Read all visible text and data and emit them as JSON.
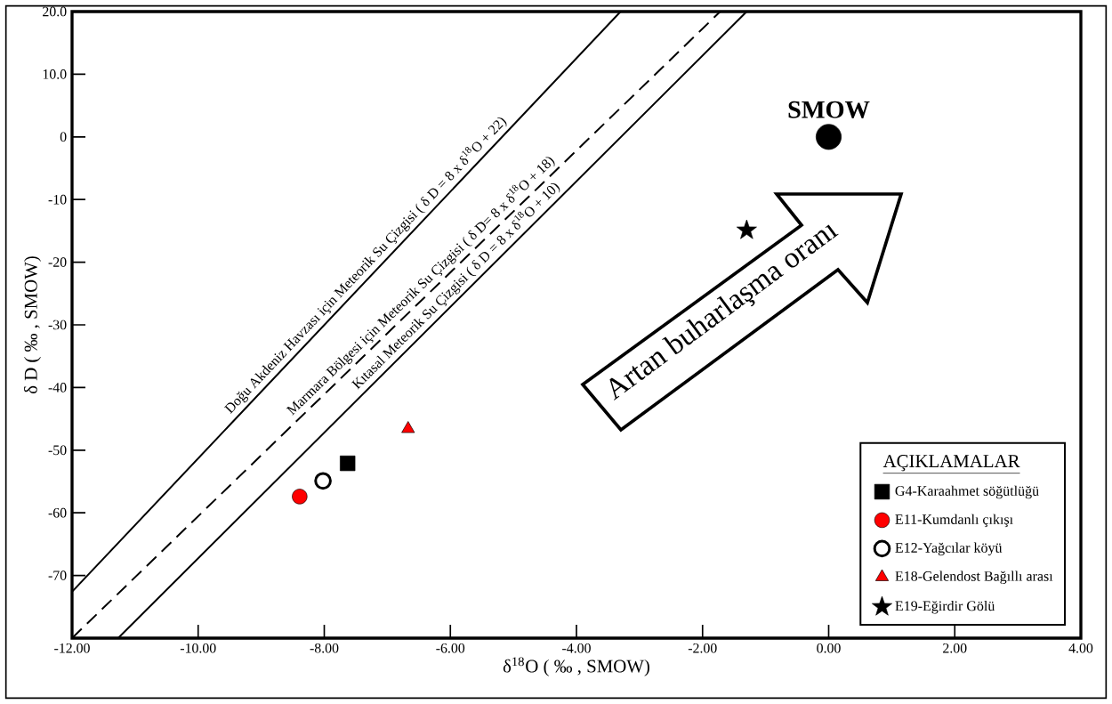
{
  "chart_data": {
    "type": "scatter",
    "xlabel": "δ$^{18}$O ( ‰ , SMOW)",
    "ylabel": "δ D ( ‰ , SMOW)",
    "xlim": [
      -12,
      4
    ],
    "ylim": [
      -80,
      20
    ],
    "xticks": [
      {
        "value": -12,
        "label": "-12.00"
      },
      {
        "value": -10,
        "label": "-10.00"
      },
      {
        "value": -8,
        "label": "-8.00"
      },
      {
        "value": -6,
        "label": "-6.00"
      },
      {
        "value": -4,
        "label": "-4.00"
      },
      {
        "value": -2,
        "label": "-2.00"
      },
      {
        "value": 0,
        "label": "0.00"
      },
      {
        "value": 2,
        "label": "2.00"
      },
      {
        "value": 4,
        "label": "4.00"
      }
    ],
    "yticks": [
      {
        "value": 20,
        "label": "20.0"
      },
      {
        "value": 10,
        "label": "10.0"
      },
      0,
      -10,
      -20,
      -30,
      -40,
      -50,
      -60,
      -70
    ],
    "legend": "bottom right",
    "legend_title": "AÇIKLAMALAR",
    "series": [
      {
        "type": "line",
        "name": "Doğu Akdeniz Havzası için Meteorik Su Çizgisi ( δ D = 8 x δ$^{18}$O + 22)",
        "color": "#000000",
        "line_style": "solid",
        "marker": "none",
        "x": [
          -12,
          -3.3
        ],
        "values": [
          -72.6,
          20
        ]
      },
      {
        "type": "line",
        "name": "Marmara Bölgesi için Meteorik Su Çizgisi ( δ D= 8 x δ$^{18}$O + 18)",
        "color": "#000000",
        "line_style": "dashed",
        "marker": "none",
        "x": [
          -12,
          -1.72
        ],
        "values": [
          -80,
          20
        ]
      },
      {
        "type": "line",
        "name": "Kıtasal Meteorik  Su Çizgisi ( δ D = 8 x δ$^{18}$O + 10)",
        "color": "#000000",
        "line_style": "solid",
        "marker": "none",
        "x": [
          -11.27,
          -1.3
        ],
        "values": [
          -80,
          20
        ]
      },
      {
        "name": "G4-Karaahmet söğütlüğü",
        "color": "#000000",
        "marker": "square",
        "x": [
          -7.63
        ],
        "values": [
          -52.1
        ]
      },
      {
        "name": "E11-Kumdanlı çıkışı",
        "color": "#ff0000",
        "marker": "circle",
        "x": [
          -8.39
        ],
        "values": [
          -57.4
        ]
      },
      {
        "name": "E12-Yağcılar köyü",
        "color": "#ffffff",
        "marker": "circle",
        "x": [
          -8.02
        ],
        "values": [
          -54.9
        ]
      },
      {
        "name": "E18-Gelendost Bağıllı arası",
        "color": "#ff0000",
        "marker": "triangle",
        "x": [
          -6.67
        ],
        "values": [
          -46.6
        ]
      },
      {
        "name": "E19-Eğirdir Gölü",
        "color": "#000000",
        "marker": "star",
        "x": [
          -1.3
        ],
        "values": [
          -14.9
        ]
      },
      {
        "color": "#000000",
        "marker": "circle",
        "x": [
          0
        ],
        "values": [
          0
        ]
      }
    ],
    "annotations": [
      {
        "text": "SMOW",
        "x": 0,
        "y": 0
      },
      "Artan buharlaşma oranı"
    ]
  }
}
